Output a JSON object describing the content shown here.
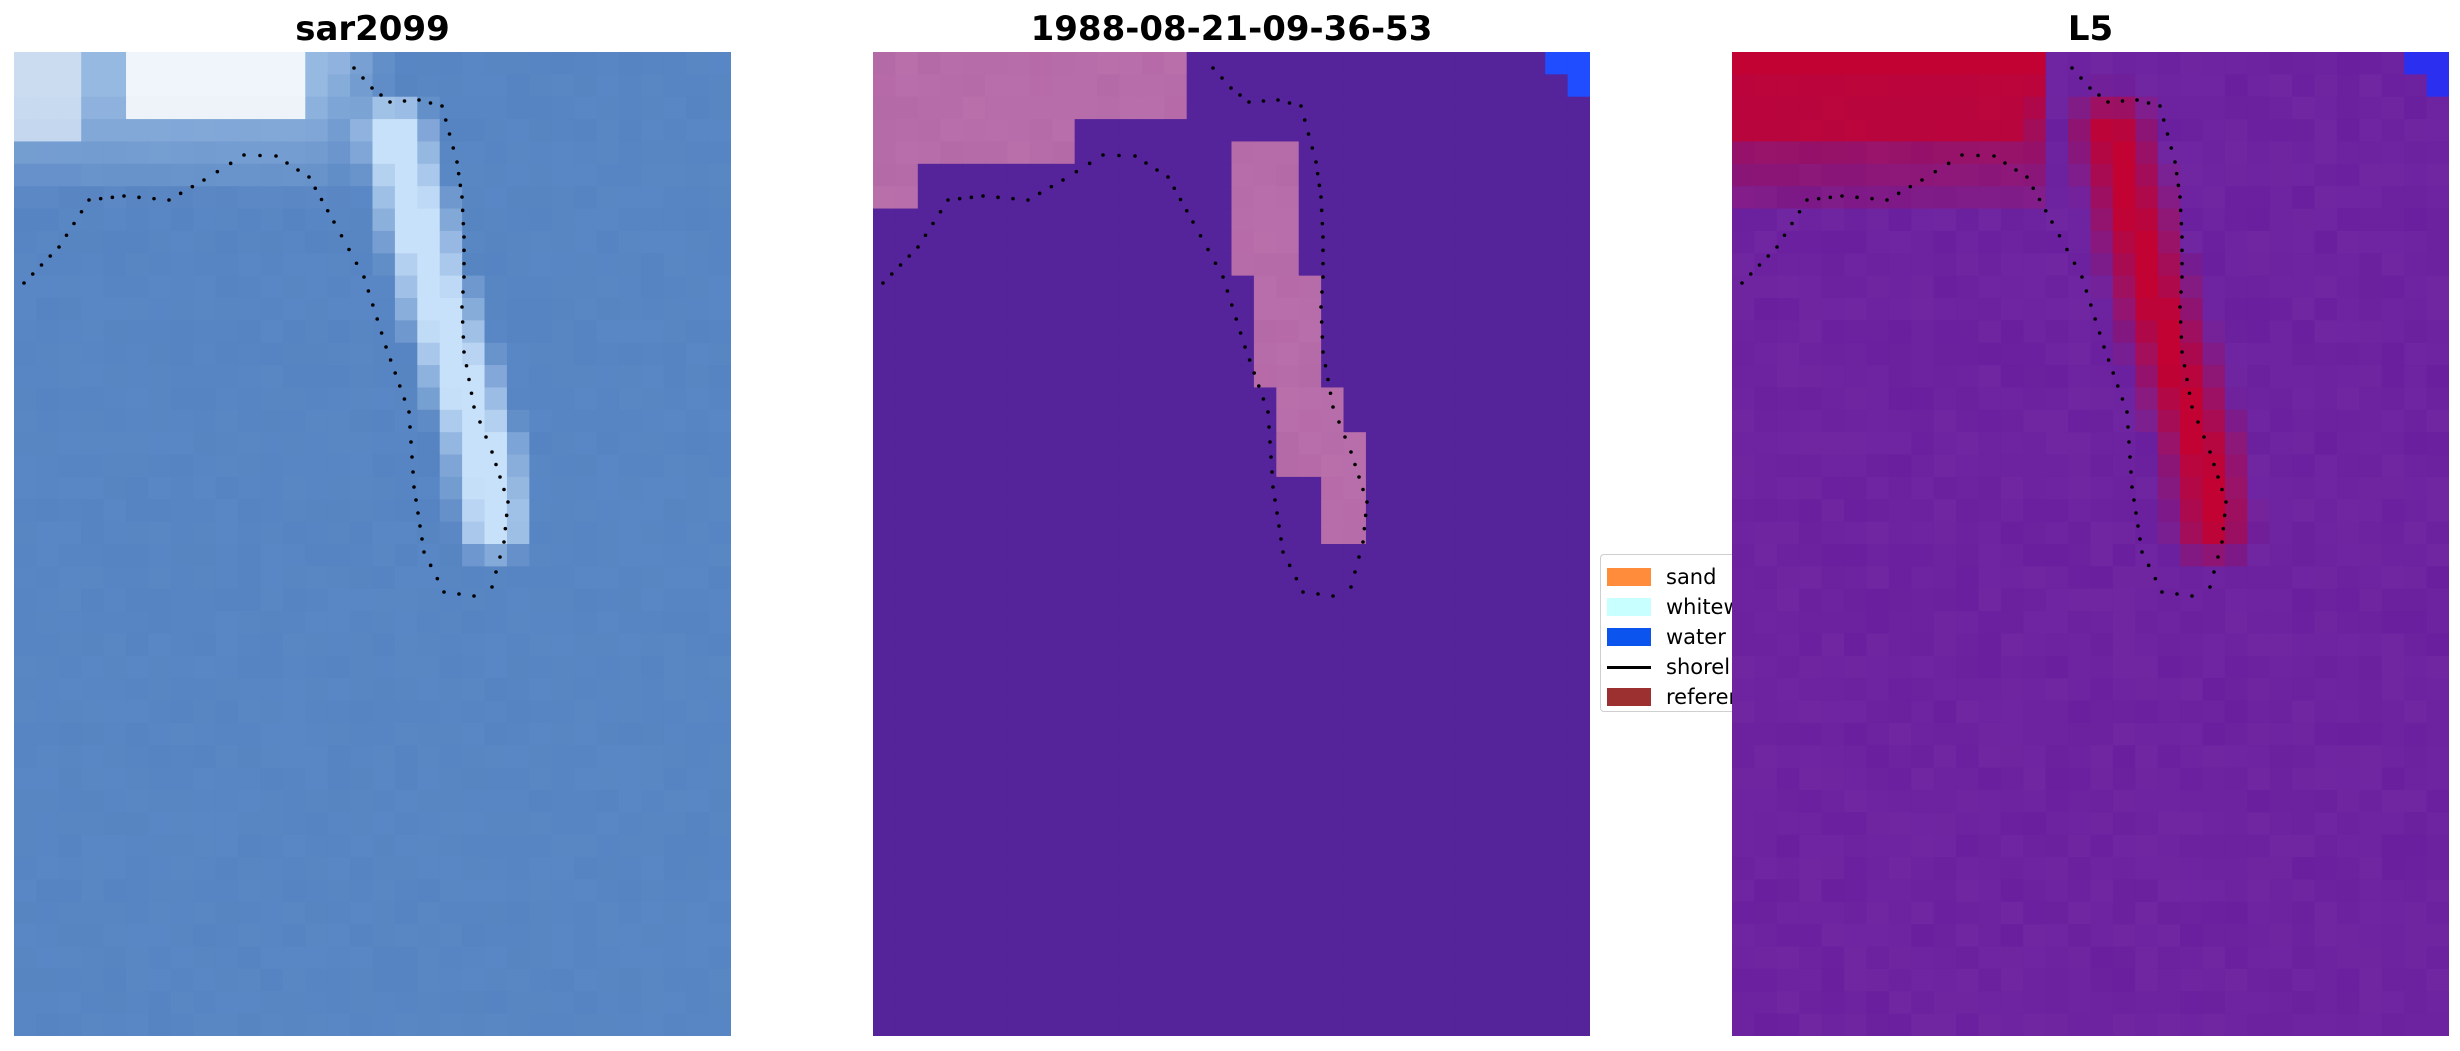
{
  "panels": [
    {
      "title": "sar2099",
      "style": "rgb",
      "colors": {
        "water": "#5684c2",
        "bright": "#ffffff",
        "dot": "#000000"
      }
    },
    {
      "title": "1988-08-21-09-36-53",
      "style": "classified",
      "colors": {
        "water": "#55239a",
        "overlay": "#b56aa8",
        "corner": "#1f4dff",
        "dot": "#000000"
      }
    },
    {
      "title": "L5",
      "style": "index",
      "colors": {
        "water": "#6a1f9e",
        "hot": "#c6002c",
        "corner": "#2a2ff0",
        "dot": "#000000"
      }
    }
  ],
  "legend": {
    "items": [
      {
        "label": "sand",
        "type": "patch",
        "color": "#ff8c3a"
      },
      {
        "label": "whitewater",
        "type": "patch",
        "color": "#c8ffff"
      },
      {
        "label": "water",
        "type": "patch",
        "color": "#0b55ee"
      },
      {
        "label": "shoreline",
        "type": "line",
        "color": "#000000"
      },
      {
        "label": "reference",
        "type": "patch",
        "color": "#9c2f2f"
      }
    ]
  }
}
